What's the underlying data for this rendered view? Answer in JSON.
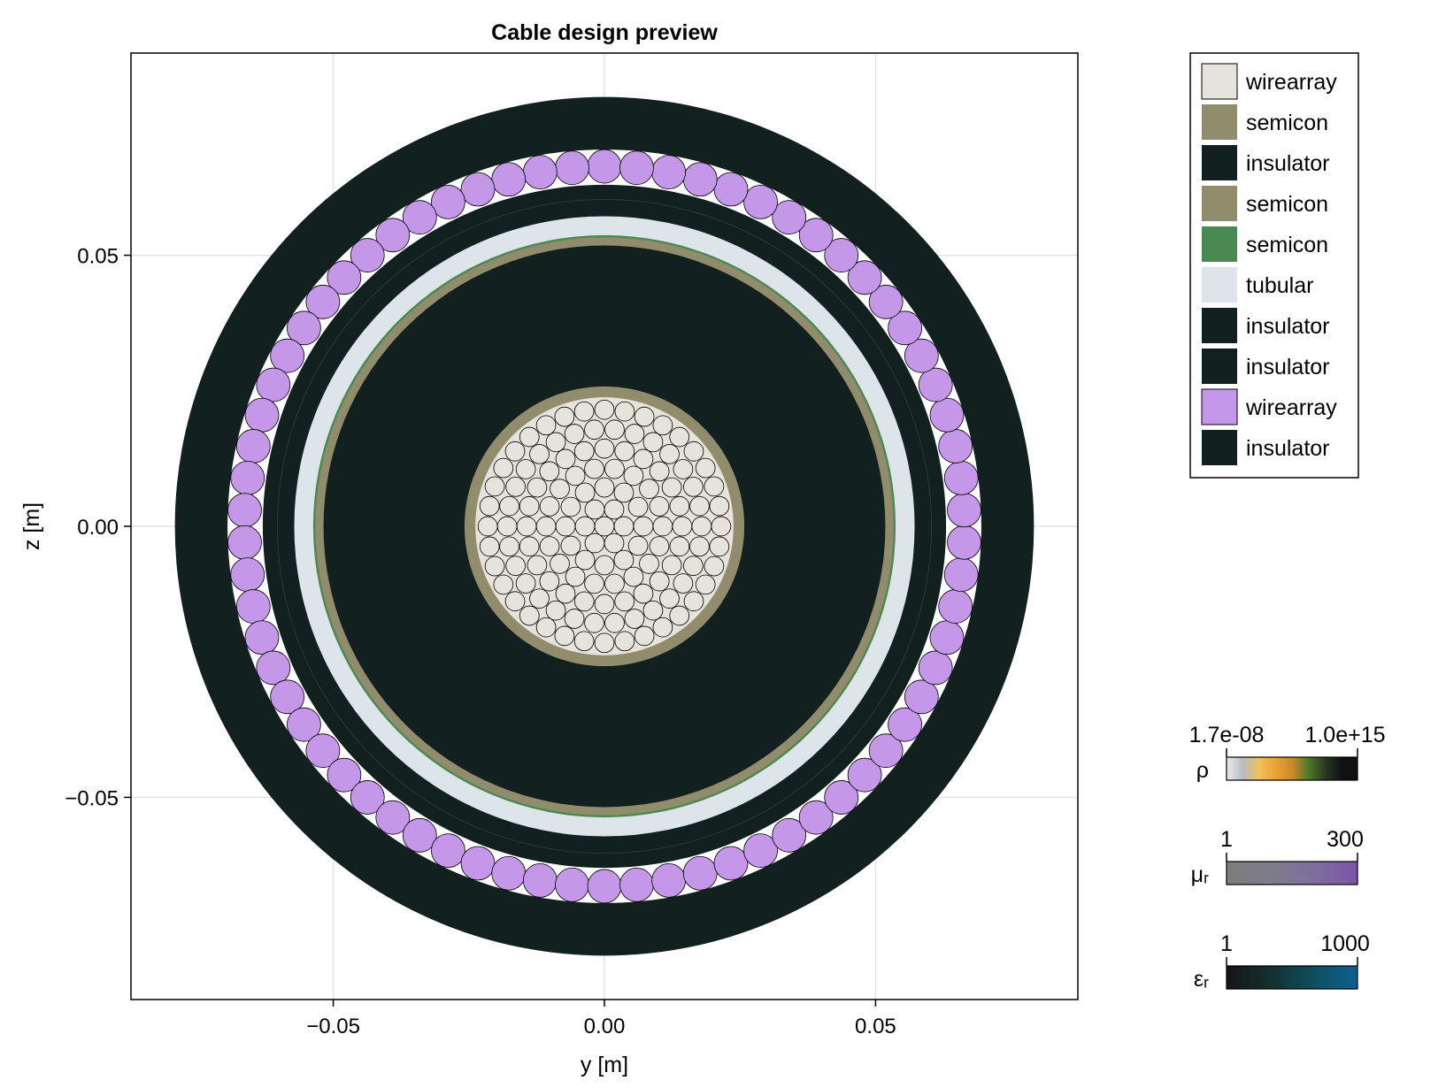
{
  "title": "Cable design preview",
  "xlabel": "y [m]",
  "ylabel": "z [m]",
  "x_ticks": [
    {
      "value": -0.05,
      "label": "−0.05"
    },
    {
      "value": 0.0,
      "label": "0.00"
    },
    {
      "value": 0.05,
      "label": "0.05"
    }
  ],
  "y_ticks": [
    {
      "value": 0.05,
      "label": "0.05"
    },
    {
      "value": 0.0,
      "label": "0.00"
    },
    {
      "value": -0.05,
      "label": "−0.05"
    }
  ],
  "axis_range": {
    "xlim": [
      -0.0873,
      0.0873
    ],
    "ylim": [
      -0.0873,
      0.0873
    ]
  },
  "grid": true,
  "colors": {
    "wirearray_core": "#e6e3dc",
    "semicon": "#918c6c",
    "insulator": "#12211f",
    "semicon_green": "#4a8a52",
    "tubular": "#dde4ea",
    "wirearray_screen": "#c497e8",
    "gap": "#ffffff"
  },
  "legend": {
    "placement": "top-right",
    "entries": [
      {
        "label": "wirearray",
        "color": "#e6e3dc"
      },
      {
        "label": "semicon",
        "color": "#918c6c"
      },
      {
        "label": "insulator",
        "color": "#12211f"
      },
      {
        "label": "semicon",
        "color": "#918c6c"
      },
      {
        "label": "semicon",
        "color": "#4a8a52"
      },
      {
        "label": "tubular",
        "color": "#dde4ea"
      },
      {
        "label": "insulator",
        "color": "#12211f"
      },
      {
        "label": "insulator",
        "color": "#12211f"
      },
      {
        "label": "wirearray",
        "color": "#c497e8"
      },
      {
        "label": "insulator",
        "color": "#12211f"
      }
    ]
  },
  "colorbars": [
    {
      "symbol": "ρ",
      "min_label": "1.7e-08",
      "max_label": "1.0e+15",
      "stops": [
        "#e9ecef",
        "#b8bcc0",
        "#f3c05a",
        "#e9a235",
        "#c98a2b",
        "#4f7a2a",
        "#2a3a22",
        "#111111",
        "#111111"
      ]
    },
    {
      "symbol": "μᵣ",
      "min_label": "1",
      "max_label": "300",
      "stops": [
        "#7d7d7d",
        "#7f7c8c",
        "#7f6e9f",
        "#7a55a6"
      ]
    },
    {
      "symbol": "εᵣ",
      "min_label": "1",
      "max_label": "1000",
      "stops": [
        "#151515",
        "#14302f",
        "#0f4e5e",
        "#0f6192"
      ]
    }
  ],
  "layers": {
    "core_conductor": {
      "label": "wirearray",
      "r_in": 0.0,
      "r_out": 0.0238,
      "wire_rings": [
        0,
        6,
        12,
        18,
        24,
        30,
        36
      ],
      "wire_radius": 0.00182
    },
    "conductor_semicon": {
      "label": "semicon",
      "r_in": 0.0238,
      "r_out": 0.0258
    },
    "main_insulation": {
      "label": "insulator",
      "r_in": 0.0258,
      "r_out": 0.0518
    },
    "insulation_semicon": {
      "label": "semicon",
      "r_in": 0.0518,
      "r_out": 0.0533
    },
    "green_semicon": {
      "label": "semicon",
      "r_in": 0.0533,
      "r_out": 0.0537
    },
    "tubular_sheath": {
      "label": "tubular",
      "r_in": 0.0537,
      "r_out": 0.0572
    },
    "insulator_1": {
      "label": "insulator",
      "r_in": 0.0572,
      "r_out": 0.0603
    },
    "insulator_2": {
      "label": "insulator",
      "r_in": 0.0603,
      "r_out": 0.063
    },
    "screen_wires": {
      "label": "wirearray",
      "ring_radius": 0.0664,
      "wire_radius": 0.0031,
      "count": 70,
      "r_in": 0.0633,
      "r_out": 0.0695
    },
    "outer_jacket": {
      "label": "insulator",
      "r_in": 0.0695,
      "r_out": 0.0792
    }
  }
}
